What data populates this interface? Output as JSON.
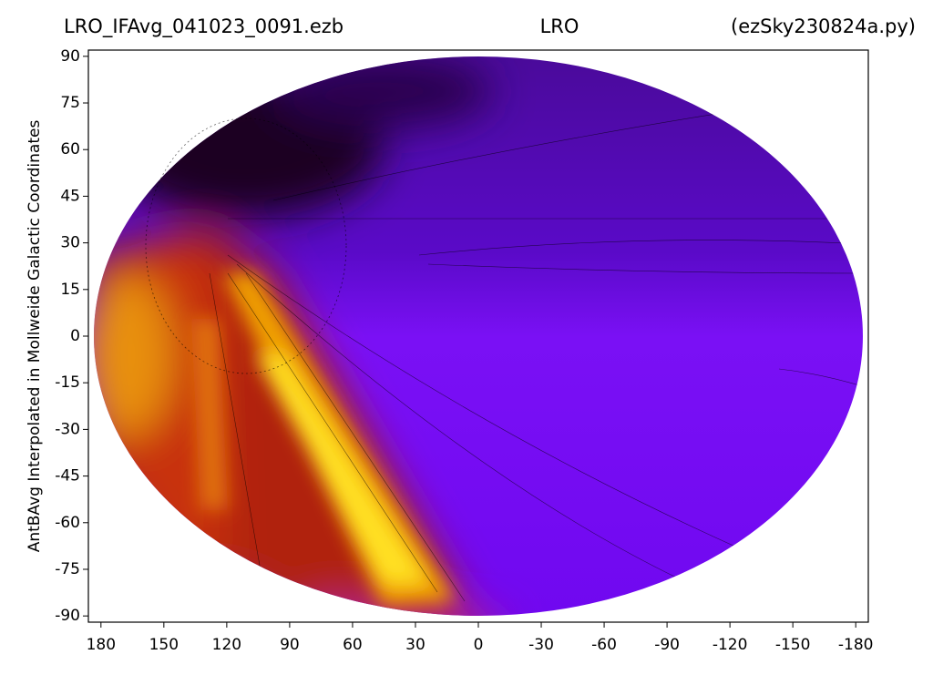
{
  "chart_data": {
    "type": "heatmap",
    "title_left": "LRO_IFAvg_041023_0091.ezb",
    "title_center": "LRO",
    "title_right": "(ezSky230824a.py)",
    "ylabel": "AntBAvg Interpolated in Mollweide Galactic Coordinates",
    "xlim": [
      186,
      -186
    ],
    "ylim": [
      -92,
      92
    ],
    "xticks": [
      180,
      150,
      120,
      90,
      60,
      30,
      0,
      -30,
      -60,
      -90,
      -120,
      -150,
      -180
    ],
    "yticks": [
      90,
      75,
      60,
      45,
      30,
      15,
      0,
      -15,
      -30,
      -45,
      -60,
      -75,
      -90
    ]
  }
}
